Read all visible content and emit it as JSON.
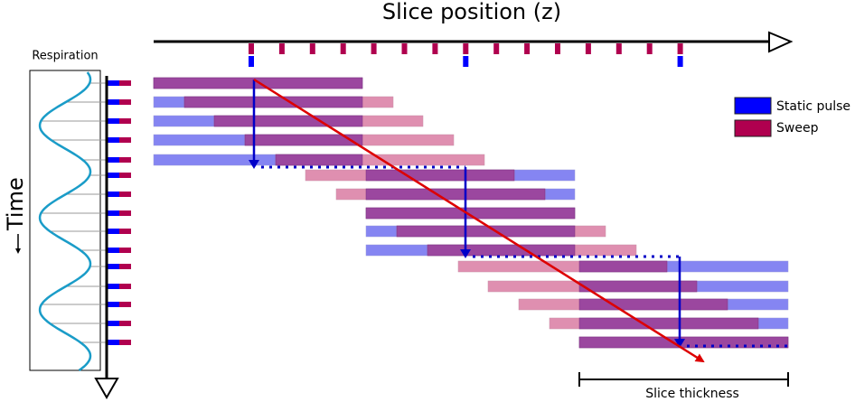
{
  "axis_title": "Slice position (z)",
  "respiration_label": "Respiration",
  "time_label": "Time",
  "legend": {
    "items": [
      "Static pulse",
      "Sweep"
    ]
  },
  "scale_bar_label": "Slice thickness"
}
